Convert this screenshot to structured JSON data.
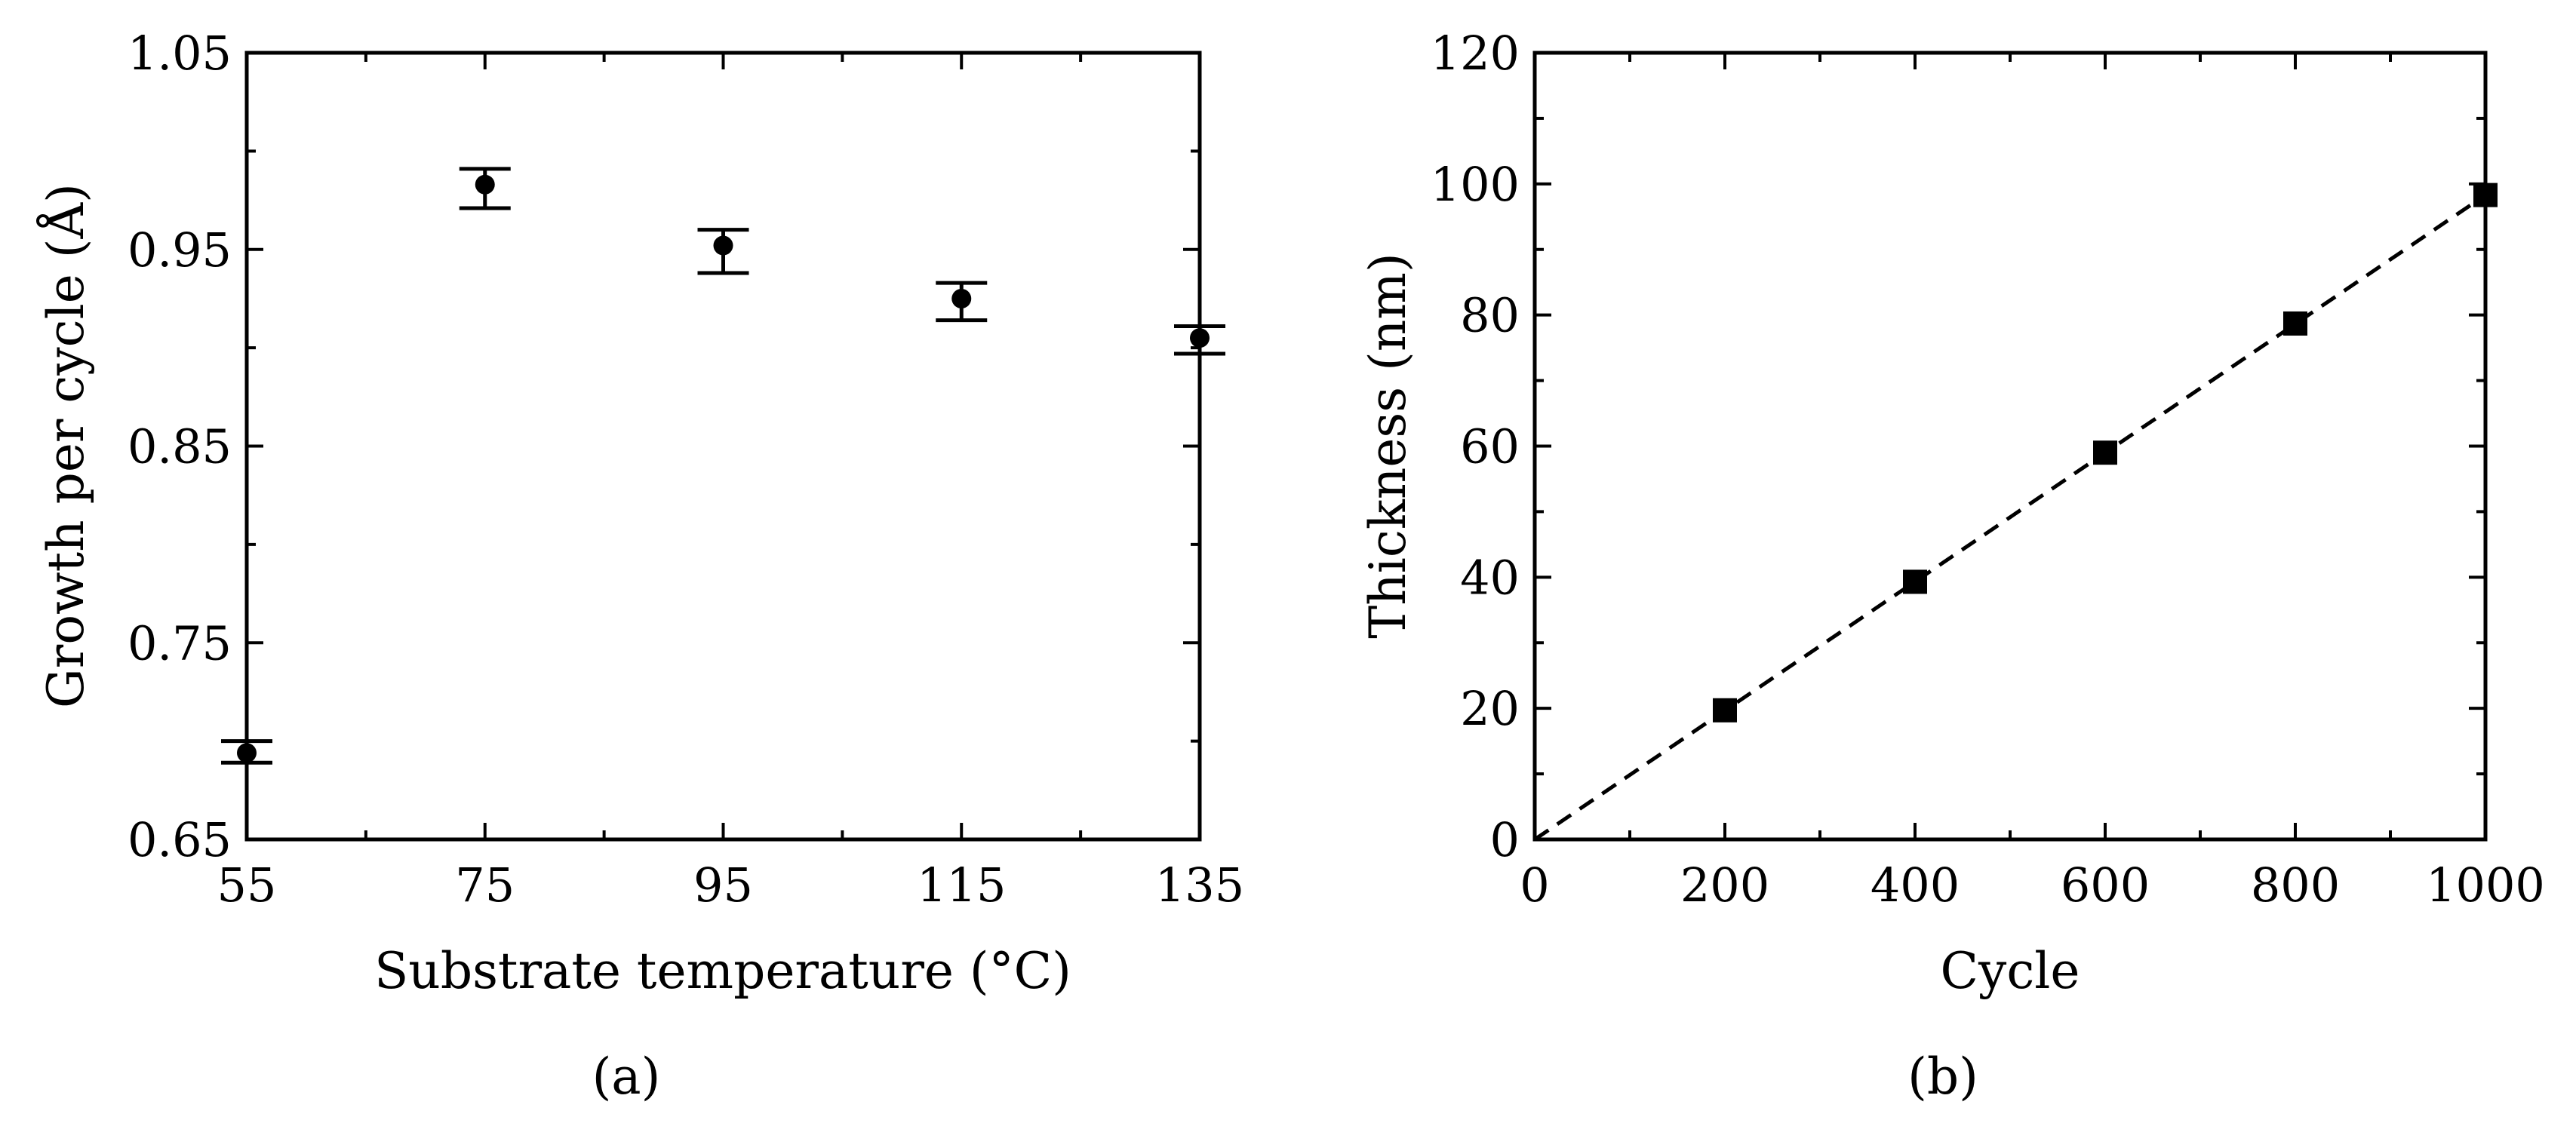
{
  "chart_data": [
    {
      "panel": "a",
      "panel_label": "(a)",
      "type": "scatter",
      "xlabel": "Substrate temperature (°C)",
      "ylabel": "Growth per cycle (Å)",
      "xlim": [
        55,
        135
      ],
      "ylim": [
        0.65,
        1.05
      ],
      "xticks": [
        55,
        75,
        95,
        115,
        135
      ],
      "yticks": [
        0.65,
        0.75,
        0.85,
        0.95,
        1.05
      ],
      "ytick_labels": [
        "0.65",
        "0.75",
        "0.85",
        "0.95",
        "1.05"
      ],
      "marker": "circle",
      "points": [
        {
          "x": 55,
          "y": 0.694,
          "err_low": 0.689,
          "err_high": 0.7
        },
        {
          "x": 75,
          "y": 0.983,
          "err_low": 0.971,
          "err_high": 0.991
        },
        {
          "x": 95,
          "y": 0.952,
          "err_low": 0.938,
          "err_high": 0.96
        },
        {
          "x": 115,
          "y": 0.925,
          "err_low": 0.914,
          "err_high": 0.933
        },
        {
          "x": 135,
          "y": 0.905,
          "err_low": 0.897,
          "err_high": 0.911
        }
      ],
      "grid": false
    },
    {
      "panel": "b",
      "panel_label": "(b)",
      "type": "scatter",
      "xlabel": "Cycle",
      "ylabel": "Thickness (nm)",
      "xlim": [
        0,
        1000
      ],
      "ylim": [
        0,
        120
      ],
      "xticks": [
        0,
        200,
        400,
        600,
        800,
        1000
      ],
      "yticks": [
        0,
        20,
        40,
        60,
        80,
        100,
        120
      ],
      "marker": "square",
      "x": [
        200,
        400,
        600,
        800,
        1000
      ],
      "y": [
        19.7,
        39.3,
        59.0,
        78.7,
        98.3
      ],
      "fit_line": {
        "style": "dashed",
        "x": [
          0,
          1000
        ],
        "y": [
          0,
          98.3
        ]
      },
      "grid": false
    }
  ]
}
